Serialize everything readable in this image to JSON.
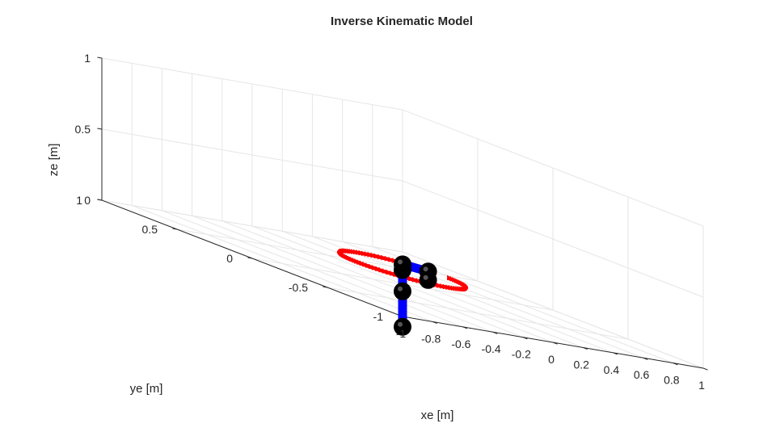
{
  "chart_data": {
    "type": "3d-line",
    "title": "Inverse Kinematic Model",
    "xlabel": "xe [m]",
    "ylabel": "ye [m]",
    "zlabel": "ze [m]",
    "xlim": [
      -1,
      1
    ],
    "ylim": [
      -1,
      1
    ],
    "zlim": [
      0,
      1
    ],
    "grid": true,
    "x_ticks": [
      "-1",
      "-0.8",
      "-0.6",
      "-0.4",
      "-0.2",
      "0",
      "0.2",
      "0.4",
      "0.6",
      "0.8",
      "1"
    ],
    "y_ticks": [
      "-1",
      "-0.5",
      "0",
      "0.5",
      "1"
    ],
    "z_ticks": [
      "0",
      "0.5",
      "1"
    ],
    "trajectory": {
      "color": "#ff0000",
      "center": [
        0,
        0
      ],
      "radius": 0.3,
      "z": 0.1,
      "start_angle_deg": 20,
      "sweep_deg": 340
    },
    "manipulator": {
      "link_color": "#0000ff",
      "joint_color": "#000000",
      "joints": [
        [
          0,
          0,
          -0.3
        ],
        [
          0,
          0,
          -0.05
        ],
        [
          0,
          0,
          0.1
        ],
        [
          0,
          0,
          0.14
        ],
        [
          0.26,
          0.09,
          0.1
        ],
        [
          0.26,
          0.09,
          0.04
        ]
      ]
    }
  }
}
